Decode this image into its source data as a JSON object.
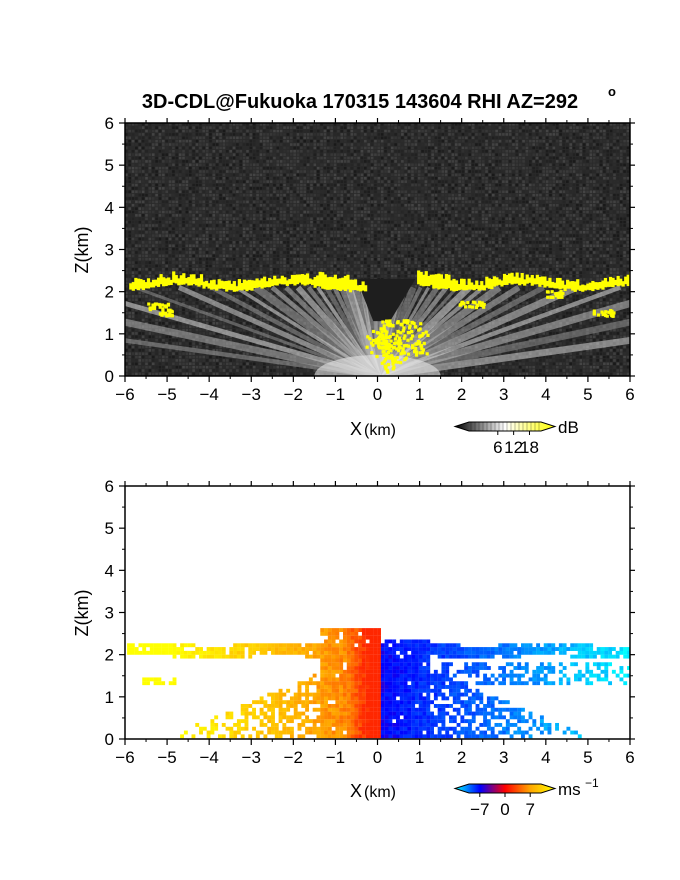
{
  "chart_data": [
    {
      "type": "heatmap",
      "title": "3D-CDL@Fukuoka 170315 143604 RHI AZ=292",
      "title_superscript": "o",
      "xlabel": "X",
      "xlabel_unit": "(km)",
      "ylabel": "Z(km)",
      "xlim": [
        -6,
        6
      ],
      "ylim": [
        0,
        6
      ],
      "x_ticks": [
        "−6",
        "−5",
        "−4",
        "−3",
        "−2",
        "−1",
        "0",
        "1",
        "2",
        "3",
        "4",
        "5",
        "6"
      ],
      "y_ticks": [
        "0",
        "1",
        "2",
        "3",
        "4",
        "5",
        "6"
      ],
      "colorbar": {
        "unit": "dB",
        "tick_labels": [
          "6",
          "12",
          "18"
        ],
        "range": [
          0,
          20
        ],
        "colors": [
          "#000000",
          "#ffffff",
          "#ffff00"
        ]
      },
      "features": {
        "noise_floor_color": "#2a2a2a",
        "cloud_base_km": 2.1,
        "strong_echo_color": "#ffff00"
      }
    },
    {
      "type": "heatmap",
      "xlabel": "X",
      "xlabel_unit": "(km)",
      "ylabel": "Z(km)",
      "xlim": [
        -6,
        6
      ],
      "ylim": [
        0,
        6
      ],
      "x_ticks": [
        "−6",
        "−5",
        "−4",
        "−3",
        "−2",
        "−1",
        "0",
        "1",
        "2",
        "3",
        "4",
        "5",
        "6"
      ],
      "y_ticks": [
        "0",
        "1",
        "2",
        "3",
        "4",
        "5",
        "6"
      ],
      "colorbar": {
        "unit": "ms",
        "unit_superscript": "−1",
        "tick_labels": [
          "−7",
          "0",
          "7"
        ],
        "range": [
          -10,
          10
        ],
        "colors": [
          "#00ffff",
          "#0000ff",
          "#ff0000",
          "#ffa500",
          "#ffff00"
        ]
      },
      "features": {
        "negative_side": "x > 0 (blue, toward radar)",
        "positive_side": "x < 0 (orange/red, away from radar)"
      }
    }
  ]
}
